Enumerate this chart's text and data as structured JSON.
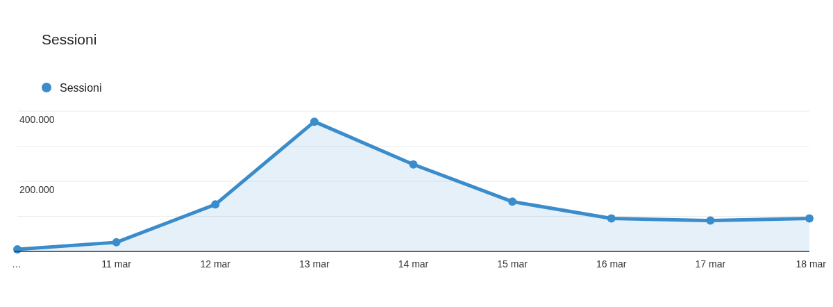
{
  "chart_data": {
    "type": "area",
    "title": "Sessioni",
    "categories": [
      "…",
      "11 mar",
      "12 mar",
      "13 mar",
      "14 mar",
      "15 mar",
      "16 mar",
      "17 mar",
      "18 mar"
    ],
    "series": [
      {
        "name": "Sessioni",
        "color": "#3a8ccb",
        "values": [
          6000,
          26000,
          134000,
          370000,
          248000,
          142000,
          94000,
          88000,
          94000
        ]
      }
    ],
    "ylim": [
      0,
      400000
    ],
    "yticks": [
      {
        "value": 0,
        "label": null
      },
      {
        "value": 100000,
        "label": null
      },
      {
        "value": 200000,
        "label": "200.000"
      },
      {
        "value": 300000,
        "label": null
      },
      {
        "value": 400000,
        "label": "400.000"
      }
    ],
    "grid": "y",
    "legend": "top left",
    "marker": "circle"
  }
}
